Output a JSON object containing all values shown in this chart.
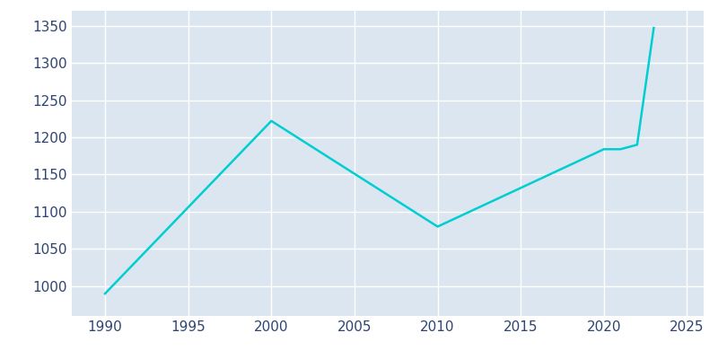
{
  "years": [
    1990,
    2000,
    2010,
    2020,
    2021,
    2022,
    2023
  ],
  "population": [
    990,
    1222,
    1080,
    1184,
    1184,
    1190,
    1347
  ],
  "line_color": "#00CED1",
  "plot_bg_color": "#dce6f0",
  "fig_bg_color": "#ffffff",
  "tick_color": "#2e4472",
  "xlim": [
    1988,
    2026
  ],
  "ylim": [
    960,
    1370
  ],
  "xticks": [
    1990,
    1995,
    2000,
    2005,
    2010,
    2015,
    2020,
    2025
  ],
  "yticks": [
    1000,
    1050,
    1100,
    1150,
    1200,
    1250,
    1300,
    1350
  ],
  "line_width": 1.8,
  "tick_fontsize": 11
}
